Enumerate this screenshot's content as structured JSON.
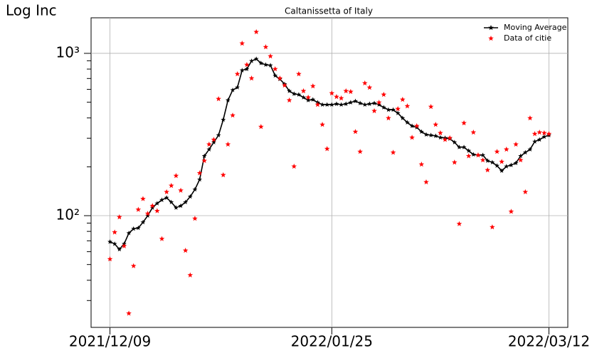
{
  "chart_data": {
    "type": "line",
    "title": "Caltanissetta of Italy",
    "ylabel": "Log Inc",
    "yscale": "log",
    "grid": true,
    "legend": "upper right",
    "xlim": [
      "2021/12/05",
      "2022/03/16"
    ],
    "xticks": [
      "2021/12/09",
      "2022/01/25",
      "2022/03/12"
    ],
    "ylim": [
      20.5,
      1656
    ],
    "yticks": [
      {
        "value": 100,
        "label": "10²"
      },
      {
        "value": 1000,
        "label": "10³"
      }
    ],
    "yminorticks": [
      30,
      40,
      50,
      60,
      70,
      80,
      90,
      200,
      300,
      400,
      500,
      600,
      700,
      800,
      900
    ],
    "x": [
      "2021/12/09",
      "2021/12/10",
      "2021/12/11",
      "2021/12/12",
      "2021/12/13",
      "2021/12/14",
      "2021/12/15",
      "2021/12/16",
      "2021/12/17",
      "2021/12/18",
      "2021/12/19",
      "2021/12/20",
      "2021/12/21",
      "2021/12/22",
      "2021/12/23",
      "2021/12/24",
      "2021/12/25",
      "2021/12/26",
      "2021/12/27",
      "2021/12/28",
      "2021/12/29",
      "2021/12/30",
      "2021/12/31",
      "2022/01/01",
      "2022/01/02",
      "2022/01/03",
      "2022/01/04",
      "2022/01/05",
      "2022/01/06",
      "2022/01/07",
      "2022/01/08",
      "2022/01/09",
      "2022/01/10",
      "2022/01/11",
      "2022/01/12",
      "2022/01/13",
      "2022/01/14",
      "2022/01/15",
      "2022/01/16",
      "2022/01/17",
      "2022/01/18",
      "2022/01/19",
      "2022/01/20",
      "2022/01/21",
      "2022/01/22",
      "2022/01/23",
      "2022/01/24",
      "2022/01/25",
      "2022/01/26",
      "2022/01/27",
      "2022/01/28",
      "2022/01/29",
      "2022/01/30",
      "2022/01/31",
      "2022/02/01",
      "2022/02/02",
      "2022/02/03",
      "2022/02/04",
      "2022/02/05",
      "2022/02/06",
      "2022/02/07",
      "2022/02/08",
      "2022/02/09",
      "2022/02/10",
      "2022/02/11",
      "2022/02/12",
      "2022/02/13",
      "2022/02/14",
      "2022/02/15",
      "2022/02/16",
      "2022/02/17",
      "2022/02/18",
      "2022/02/19",
      "2022/02/20",
      "2022/02/21",
      "2022/02/22",
      "2022/02/23",
      "2022/02/24",
      "2022/02/25",
      "2022/02/26",
      "2022/02/27",
      "2022/02/28",
      "2022/03/01",
      "2022/03/02",
      "2022/03/03",
      "2022/03/04",
      "2022/03/05",
      "2022/03/06",
      "2022/03/07",
      "2022/03/08",
      "2022/03/09",
      "2022/03/10",
      "2022/03/11",
      "2022/03/12"
    ],
    "series": [
      {
        "name": "Moving Average",
        "color": "#000000",
        "style": "line",
        "values": [
          69,
          67,
          62,
          67,
          78,
          83,
          84,
          91,
          100,
          112,
          119,
          125,
          129,
          121,
          112,
          115,
          121,
          131,
          145,
          167,
          233,
          256,
          283,
          313,
          390,
          514,
          594,
          617,
          786,
          801,
          897,
          924,
          870,
          851,
          843,
          729,
          694,
          646,
          586,
          563,
          557,
          535,
          514,
          519,
          498,
          483,
          483,
          483,
          488,
          483,
          488,
          498,
          508,
          493,
          483,
          488,
          493,
          483,
          464,
          449,
          449,
          428,
          399,
          375,
          357,
          350,
          329,
          316,
          313,
          310,
          303,
          301,
          298,
          283,
          264,
          264,
          251,
          238,
          236,
          236,
          218,
          213,
          203,
          189,
          201,
          205,
          211,
          233,
          245,
          256,
          286,
          294,
          306,
          313
        ]
      },
      {
        "name": "Data of citie",
        "color": "#ff0000",
        "style": "scatter",
        "values": [
          54,
          79,
          98,
          65,
          25,
          49,
          109,
          127,
          103,
          115,
          107,
          72,
          140,
          153,
          176,
          143,
          61,
          43,
          96,
          183,
          218,
          275,
          294,
          524,
          178,
          275,
          415,
          746,
          1151,
          851,
          702,
          1355,
          353,
          1094,
          960,
          801,
          702,
          635,
          514,
          201,
          746,
          586,
          535,
          628,
          483,
          364,
          258,
          568,
          540,
          529,
          586,
          580,
          329,
          248,
          655,
          616,
          442,
          498,
          557,
          399,
          245,
          455,
          519,
          473,
          303,
          357,
          207,
          161,
          469,
          364,
          323,
          294,
          301,
          213,
          89,
          372,
          233,
          326,
          236,
          220,
          191,
          85,
          248,
          215,
          256,
          106,
          275,
          220,
          140,
          399,
          319,
          326,
          323,
          319
        ]
      }
    ]
  }
}
